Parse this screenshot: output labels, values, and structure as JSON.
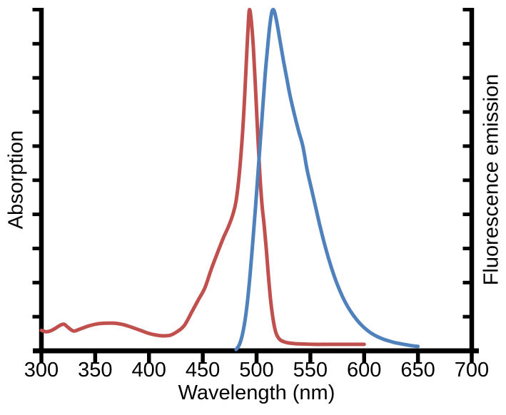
{
  "chart_data": {
    "type": "line",
    "title": "",
    "xlabel": "Wavelength (nm)",
    "ylabel_left": "Absorption",
    "ylabel_right": "Fluorescence emission",
    "x_range_nm": [
      300,
      700
    ],
    "x_ticks_nm": [
      300,
      350,
      400,
      450,
      500,
      550,
      600,
      650,
      700
    ],
    "y_axis": {
      "normalized_range": [
        0,
        1
      ],
      "tick_intervals": 10,
      "tick_labels_shown": false
    },
    "grid": false,
    "legend_position": "none",
    "background_color": "#ffffff",
    "axis_color": "#000000",
    "series": [
      {
        "name": "Absorption",
        "color": "#C0504D",
        "peak_nm": 493,
        "points": [
          [
            300,
            0.06
          ],
          [
            304,
            0.056
          ],
          [
            308,
            0.058
          ],
          [
            313,
            0.066
          ],
          [
            317,
            0.074
          ],
          [
            321,
            0.078
          ],
          [
            325,
            0.068
          ],
          [
            330,
            0.058
          ],
          [
            336,
            0.064
          ],
          [
            344,
            0.073
          ],
          [
            352,
            0.079
          ],
          [
            360,
            0.081
          ],
          [
            368,
            0.081
          ],
          [
            376,
            0.077
          ],
          [
            384,
            0.069
          ],
          [
            392,
            0.06
          ],
          [
            400,
            0.051
          ],
          [
            407,
            0.046
          ],
          [
            413,
            0.044
          ],
          [
            420,
            0.046
          ],
          [
            427,
            0.058
          ],
          [
            433,
            0.075
          ],
          [
            440,
            0.115
          ],
          [
            446,
            0.15
          ],
          [
            452,
            0.185
          ],
          [
            458,
            0.24
          ],
          [
            464,
            0.29
          ],
          [
            469,
            0.33
          ],
          [
            474,
            0.365
          ],
          [
            478,
            0.4
          ],
          [
            481,
            0.44
          ],
          [
            484,
            0.52
          ],
          [
            487,
            0.64
          ],
          [
            489,
            0.75
          ],
          [
            491,
            0.88
          ],
          [
            492.5,
            0.97
          ],
          [
            493.5,
            1.0
          ],
          [
            495,
            0.97
          ],
          [
            497,
            0.89
          ],
          [
            499,
            0.77
          ],
          [
            501,
            0.64
          ],
          [
            503,
            0.52
          ],
          [
            505,
            0.43
          ],
          [
            507,
            0.37
          ],
          [
            509,
            0.3
          ],
          [
            511,
            0.22
          ],
          [
            513,
            0.15
          ],
          [
            515,
            0.1
          ],
          [
            517,
            0.065
          ],
          [
            519,
            0.045
          ],
          [
            522,
            0.032
          ],
          [
            526,
            0.026
          ],
          [
            530,
            0.023
          ],
          [
            536,
            0.021
          ],
          [
            544,
            0.02
          ],
          [
            554,
            0.019
          ],
          [
            566,
            0.019
          ],
          [
            580,
            0.019
          ],
          [
            590,
            0.019
          ],
          [
            600,
            0.019
          ]
        ]
      },
      {
        "name": "Fluorescence emission",
        "color": "#4F81BD",
        "peak_nm": 515,
        "points": [
          [
            481,
            0.004
          ],
          [
            484,
            0.018
          ],
          [
            487,
            0.05
          ],
          [
            490,
            0.105
          ],
          [
            493,
            0.19
          ],
          [
            496,
            0.3
          ],
          [
            499,
            0.42
          ],
          [
            502,
            0.55
          ],
          [
            505,
            0.68
          ],
          [
            508,
            0.81
          ],
          [
            510,
            0.88
          ],
          [
            512,
            0.945
          ],
          [
            514,
            0.99
          ],
          [
            515.5,
            1.0
          ],
          [
            517,
            0.99
          ],
          [
            519,
            0.96
          ],
          [
            522,
            0.905
          ],
          [
            525,
            0.85
          ],
          [
            528,
            0.8
          ],
          [
            531,
            0.75
          ],
          [
            535,
            0.695
          ],
          [
            539,
            0.645
          ],
          [
            543,
            0.6
          ],
          [
            547,
            0.53
          ],
          [
            551,
            0.475
          ],
          [
            555,
            0.42
          ],
          [
            559,
            0.365
          ],
          [
            563,
            0.315
          ],
          [
            567,
            0.27
          ],
          [
            571,
            0.23
          ],
          [
            575,
            0.195
          ],
          [
            580,
            0.158
          ],
          [
            585,
            0.128
          ],
          [
            590,
            0.104
          ],
          [
            595,
            0.084
          ],
          [
            600,
            0.068
          ],
          [
            606,
            0.053
          ],
          [
            612,
            0.042
          ],
          [
            618,
            0.034
          ],
          [
            624,
            0.028
          ],
          [
            630,
            0.023
          ],
          [
            637,
            0.019
          ],
          [
            644,
            0.015
          ],
          [
            650,
            0.013
          ]
        ]
      }
    ]
  }
}
